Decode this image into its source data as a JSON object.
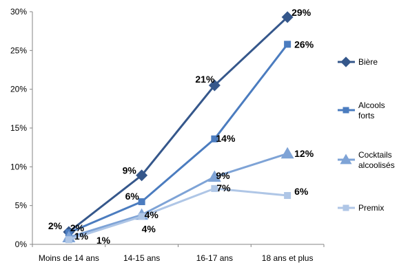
{
  "chart_data": {
    "type": "line",
    "title": "",
    "xlabel": "",
    "ylabel": "",
    "categories": [
      "Moins de 14 ans",
      "14-15 ans",
      "16-17 ans",
      "18 ans et plus"
    ],
    "ylim": [
      0,
      30
    ],
    "y_ticks": [
      "0%",
      "5%",
      "10%",
      "15%",
      "20%",
      "25%",
      "30%"
    ],
    "grid": false,
    "legend_position": "right",
    "series": [
      {
        "name": "Bière",
        "legend_lines": [
          "Bière"
        ],
        "marker": "diamond",
        "color": "#35578B",
        "values": [
          1.6,
          8.9,
          20.5,
          29.3
        ],
        "labels": [
          "2%",
          "9%",
          "21%",
          "29%"
        ]
      },
      {
        "name": "Alcools forts",
        "legend_lines": [
          "Alcools",
          "forts"
        ],
        "marker": "square",
        "color": "#4B7CBF",
        "values": [
          1.5,
          5.5,
          13.6,
          25.8
        ],
        "labels": [
          "2%",
          "6%",
          "14%",
          "26%"
        ]
      },
      {
        "name": "Cocktails alcoolisés",
        "legend_lines": [
          "Cocktails",
          "alcoolisés"
        ],
        "marker": "triangle",
        "color": "#7EA3D6",
        "values": [
          0.9,
          3.8,
          8.7,
          11.7
        ],
        "labels": [
          "1%",
          "4%",
          "9%",
          "12%"
        ]
      },
      {
        "name": "Premix",
        "legend_lines": [
          "Premix"
        ],
        "marker": "square",
        "color": "#AFC6E6",
        "values": [
          0.6,
          3.6,
          7.2,
          6.3
        ],
        "labels": [
          "1%",
          "4%",
          "7%",
          "6%"
        ]
      }
    ]
  }
}
